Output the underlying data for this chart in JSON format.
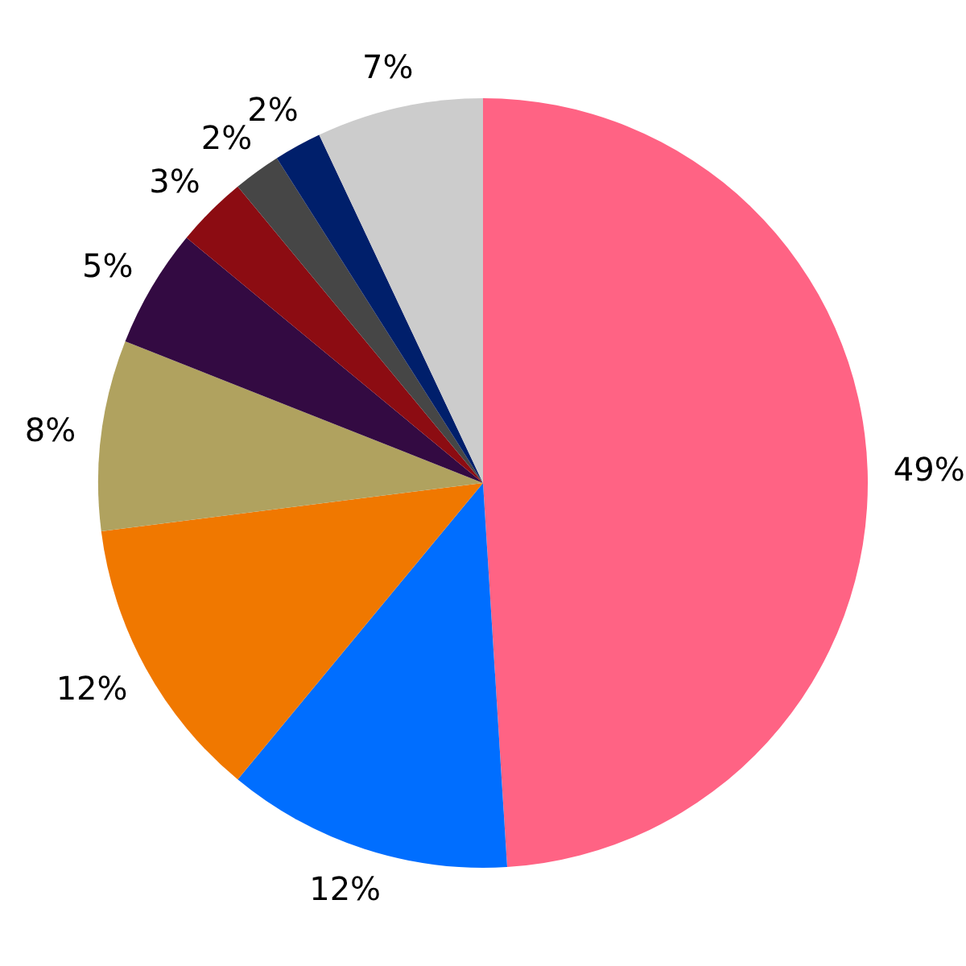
{
  "chart_data": {
    "type": "pie",
    "categories": [
      null,
      null,
      null,
      null,
      null,
      null,
      null,
      null,
      null
    ],
    "values": [
      49,
      12,
      12,
      8,
      5,
      3,
      2,
      2,
      7
    ],
    "colors": [
      "#ff6384",
      "#006eff",
      "#f07800",
      "#b0a25f",
      "#330a42",
      "#8c0c12",
      "#464646",
      "#001f6b",
      "#cccccc"
    ],
    "value_labels": [
      "49%",
      "12%",
      "12%",
      "8%",
      "5%",
      "3%",
      "2%",
      "2%",
      "7%"
    ]
  }
}
